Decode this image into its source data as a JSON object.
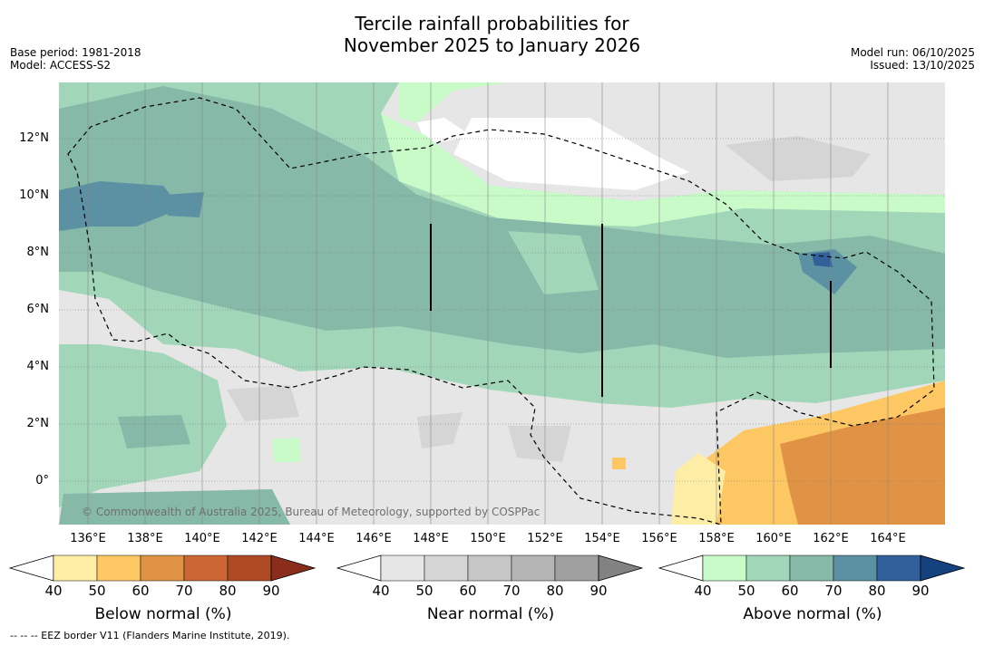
{
  "title": {
    "line1": "Tercile rainfall probabilities for",
    "line2": "November 2025 to January 2026"
  },
  "meta_left": {
    "base_period": "Base period: 1981-2018",
    "model": "Model: ACCESS-S2"
  },
  "meta_right": {
    "model_run": "Model run: 06/10/2025",
    "issued": "Issued: 13/10/2025"
  },
  "lat_labels": [
    "12°N",
    "10°N",
    "8°N",
    "6°N",
    "4°N",
    "2°N",
    "0°"
  ],
  "lon_labels": [
    "136°E",
    "138°E",
    "140°E",
    "142°E",
    "144°E",
    "146°E",
    "148°E",
    "150°E",
    "152°E",
    "154°E",
    "156°E",
    "158°E",
    "160°E",
    "162°E",
    "164°E"
  ],
  "copyright": "© Commonwealth of Australia 2025, Bureau of Meteorology, supported by COSPPac",
  "colorbars": {
    "below": {
      "title": "Below normal (%)",
      "ticks": [
        "40",
        "50",
        "60",
        "70",
        "80",
        "90"
      ],
      "colors": [
        "#ffffff",
        "#feeda4",
        "#fdc863",
        "#e09345",
        "#cc6633",
        "#ae4a26",
        "#8a2e1b"
      ]
    },
    "near": {
      "title": "Near normal (%)",
      "ticks": [
        "40",
        "50",
        "60",
        "70",
        "80",
        "90"
      ],
      "colors": [
        "#ffffff",
        "#e6e6e6",
        "#d5d5d5",
        "#c6c6c6",
        "#b4b4b4",
        "#a0a0a0",
        "#828282"
      ]
    },
    "above": {
      "title": "Above normal (%)",
      "ticks": [
        "40",
        "50",
        "60",
        "70",
        "80",
        "90"
      ],
      "colors": [
        "#ffffff",
        "#c8fbc8",
        "#a1d6b9",
        "#86b9a8",
        "#5b91a3",
        "#31609a",
        "#15427f"
      ]
    }
  },
  "footnote": "--  --  -- EEZ border V11 (Flanders Marine Institute, 2019)."
}
